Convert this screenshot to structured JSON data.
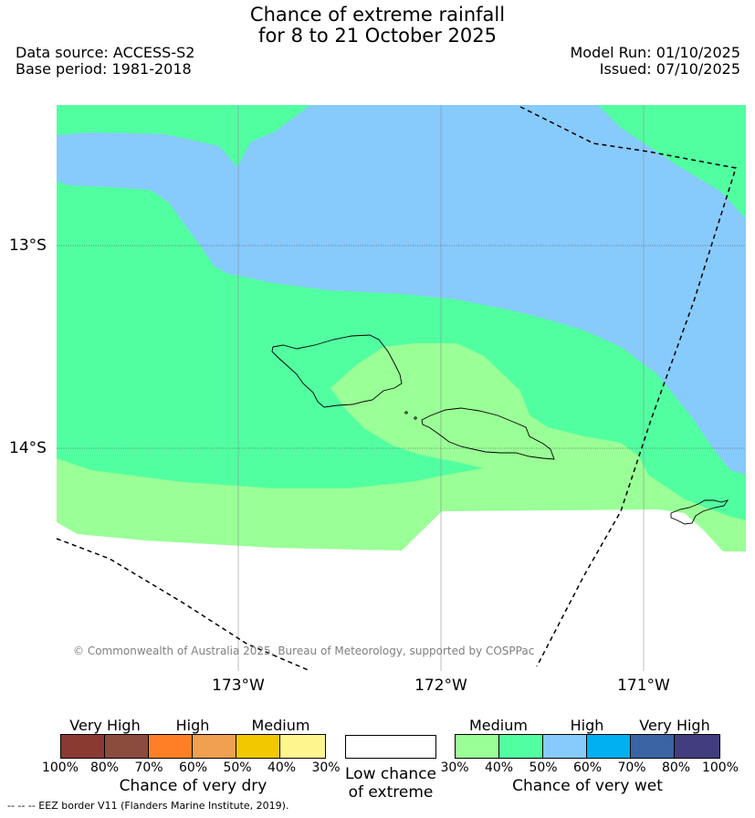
{
  "title_line1": "Chance of extreme rainfall",
  "title_line2": "for 8 to 21 October 2025",
  "data_source": "Data source: ACCESS-S2",
  "base_period": "Base period: 1981-2018",
  "model_run": "Model Run: 01/10/2025",
  "issued": "Issued: 07/10/2025",
  "lat_labels": [
    "13°S",
    "14°S"
  ],
  "lon_labels": [
    "173°W",
    "172°W",
    "171°W"
  ],
  "copyright": "© Commonwealth of Australia 2025, Bureau of Meteorology, supported by COSPPac",
  "dry_legend": {
    "headings": [
      "Very High",
      "High",
      "Medium"
    ],
    "colors": [
      "#8b3a32",
      "#8b4c3e",
      "#ff7f27",
      "#f0a050",
      "#f2c800",
      "#fff68f"
    ],
    "ticks": [
      "100%",
      "80%",
      "70%",
      "60%",
      "50%",
      "40%",
      "30%"
    ],
    "label": "Chance of very dry"
  },
  "low_legend": {
    "color": "#ffffff",
    "label_line1": "Low chance",
    "label_line2": "of extreme"
  },
  "wet_legend": {
    "headings": [
      "Medium",
      "High",
      "Very High"
    ],
    "colors": [
      "#9aff96",
      "#52ffa0",
      "#87cafc",
      "#00b0f0",
      "#3a64a4",
      "#423d7e"
    ],
    "ticks": [
      "30%",
      "40%",
      "50%",
      "60%",
      "70%",
      "80%",
      "100%"
    ],
    "label": "Chance of very wet"
  },
  "map_colors": {
    "light_green": "#9aff96",
    "green": "#52ffa0",
    "light_blue": "#87cafc"
  },
  "footer": "--  --  -- EEZ border V11 (Flanders Marine Institute, 2019)."
}
